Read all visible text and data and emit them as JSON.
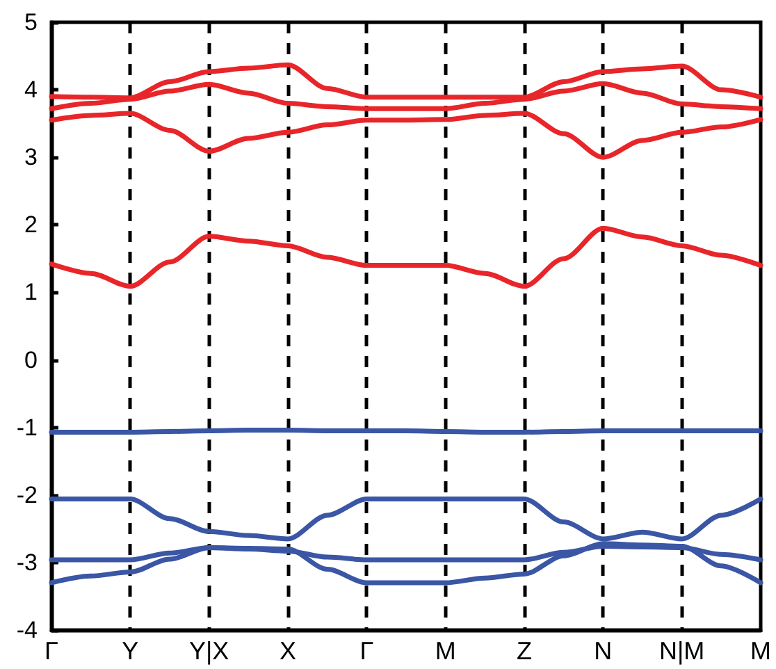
{
  "chart_data": {
    "type": "line",
    "marker": "none",
    "line_style": "solid",
    "grid": "x",
    "categories": [
      "Γ",
      null,
      "Y",
      null,
      "Y|X",
      null,
      "X",
      null,
      "Γ",
      null,
      "M",
      null,
      "Z",
      null,
      "N",
      null,
      "N|M",
      null,
      "M"
    ],
    "ylim": [
      -4,
      5
    ],
    "yticks": [
      -4,
      -3,
      -2,
      -1,
      0,
      1,
      2,
      3,
      4,
      5
    ],
    "series": [
      {
        "color": "#e8262a",
        "values": [
          1.42,
          1.28,
          1.09,
          1.45,
          1.83,
          1.76,
          1.69,
          1.52,
          1.4,
          1.4,
          1.4,
          1.28,
          1.09,
          1.5,
          1.95,
          1.82,
          1.69,
          1.55,
          1.4
        ]
      },
      {
        "color": "#e8262a",
        "values": [
          3.9,
          3.89,
          3.88,
          4.12,
          4.27,
          4.32,
          4.37,
          4.02,
          3.89,
          3.89,
          3.89,
          3.89,
          3.89,
          4.12,
          4.27,
          4.31,
          4.35,
          4.0,
          3.89
        ]
      },
      {
        "color": "#e8262a",
        "values": [
          3.72,
          3.8,
          3.86,
          3.98,
          4.08,
          3.95,
          3.8,
          3.75,
          3.72,
          3.72,
          3.72,
          3.8,
          3.86,
          3.98,
          4.09,
          3.95,
          3.79,
          3.75,
          3.72
        ]
      },
      {
        "color": "#e8262a",
        "values": [
          3.55,
          3.62,
          3.65,
          3.4,
          3.09,
          3.28,
          3.37,
          3.48,
          3.55,
          3.55,
          3.56,
          3.62,
          3.65,
          3.35,
          3.0,
          3.25,
          3.37,
          3.45,
          3.56
        ]
      },
      {
        "color": "#3a56a5",
        "values": [
          -1.07,
          -1.07,
          -1.07,
          -1.06,
          -1.05,
          -1.04,
          -1.04,
          -1.05,
          -1.05,
          -1.05,
          -1.06,
          -1.07,
          -1.07,
          -1.06,
          -1.05,
          -1.05,
          -1.05,
          -1.05,
          -1.05
        ]
      },
      {
        "color": "#3a56a5",
        "values": [
          -2.06,
          -2.06,
          -2.06,
          -2.35,
          -2.54,
          -2.6,
          -2.65,
          -2.3,
          -2.06,
          -2.06,
          -2.06,
          -2.06,
          -2.06,
          -2.4,
          -2.65,
          -2.55,
          -2.65,
          -2.3,
          -2.06
        ]
      },
      {
        "color": "#3a56a5",
        "values": [
          -2.96,
          -2.96,
          -2.96,
          -2.86,
          -2.78,
          -2.8,
          -2.83,
          -2.92,
          -2.96,
          -2.96,
          -2.96,
          -2.96,
          -2.96,
          -2.85,
          -2.76,
          -2.77,
          -2.78,
          -2.88,
          -2.96
        ]
      },
      {
        "color": "#3a56a5",
        "values": [
          -3.3,
          -3.2,
          -3.14,
          -2.95,
          -2.78,
          -2.79,
          -2.8,
          -3.1,
          -3.3,
          -3.3,
          -3.3,
          -3.23,
          -3.17,
          -2.9,
          -2.72,
          -2.74,
          -2.76,
          -3.05,
          -3.3
        ]
      }
    ]
  }
}
